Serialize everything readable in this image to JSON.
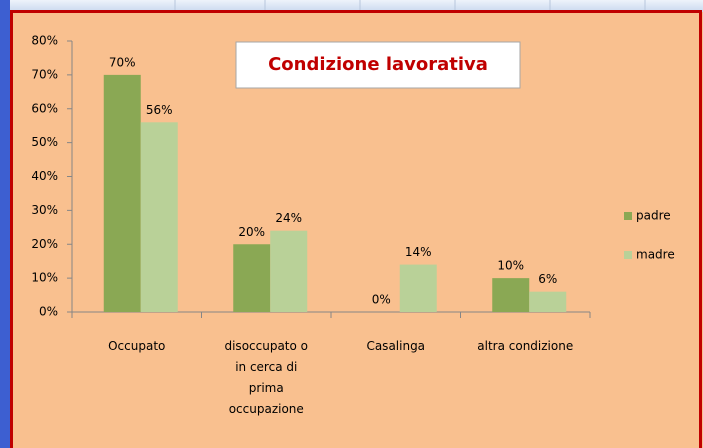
{
  "chart_data": {
    "type": "bar",
    "title": "Condizione lavorativa",
    "categories": [
      "Occupato",
      "disoccupato o\nin cerca di\nprima\noccupazione",
      "Casalinga",
      "altra condizione"
    ],
    "series": [
      {
        "name": "padre",
        "color": "#8aa854",
        "values": [
          70,
          20,
          0,
          10
        ],
        "value_labels": [
          "70%",
          "20%",
          "0%",
          "10%"
        ]
      },
      {
        "name": "madre",
        "color": "#b9d198",
        "values": [
          56,
          24,
          14,
          6
        ],
        "value_labels": [
          "56%",
          "24%",
          "14%",
          "6%"
        ]
      }
    ],
    "ylim": [
      0,
      80
    ],
    "yticks": [
      {
        "value": 0,
        "label": "0%"
      },
      {
        "value": 10,
        "label": "10%"
      },
      {
        "value": 20,
        "label": "20%"
      },
      {
        "value": 30,
        "label": "30%"
      },
      {
        "value": 40,
        "label": "40%"
      },
      {
        "value": 50,
        "label": "50%"
      },
      {
        "value": 60,
        "label": "60%"
      },
      {
        "value": 70,
        "label": "70%"
      },
      {
        "value": 80,
        "label": "80%"
      }
    ],
    "grid": false,
    "legend": "right"
  }
}
